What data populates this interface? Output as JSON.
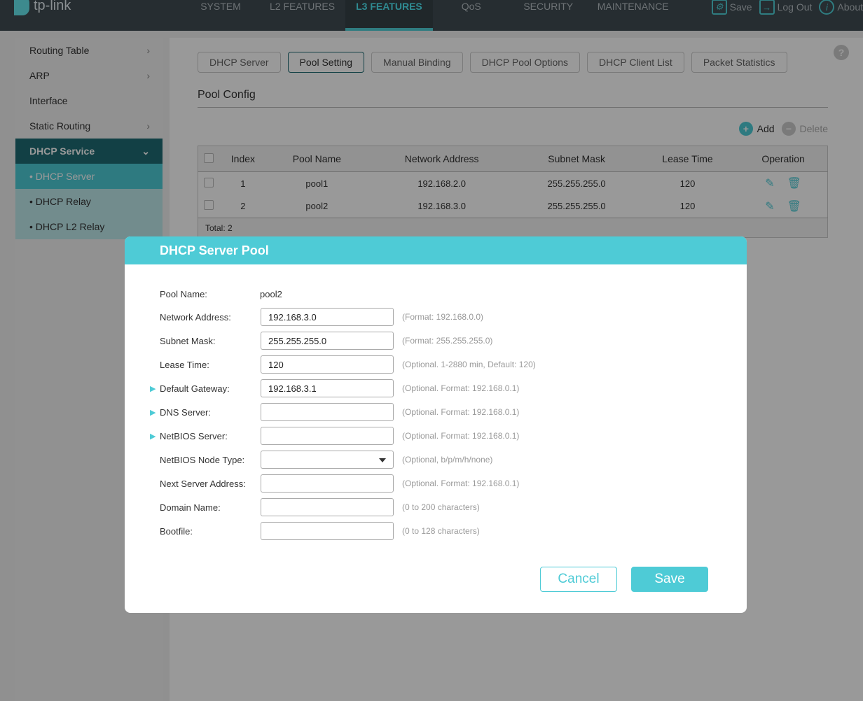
{
  "header": {
    "logo": "tp-link",
    "nav": [
      "SYSTEM",
      "L2 FEATURES",
      "L3 FEATURES",
      "QoS",
      "SECURITY",
      "MAINTENANCE"
    ],
    "active_nav": "L3 FEATURES",
    "save": "Save",
    "logout": "Log Out",
    "about": "About"
  },
  "sidebar": {
    "items": [
      "Routing Table",
      "ARP",
      "Interface",
      "Static Routing"
    ],
    "group": "DHCP Service",
    "sub": [
      "DHCP Server",
      "DHCP Relay",
      "DHCP L2 Relay"
    ]
  },
  "tabs": [
    "DHCP Server",
    "Pool Setting",
    "Manual Binding",
    "DHCP Pool Options",
    "DHCP Client List",
    "Packet Statistics"
  ],
  "section": "Pool Config",
  "toolbar": {
    "add": "Add",
    "delete": "Delete"
  },
  "table": {
    "headers": [
      "Index",
      "Pool Name",
      "Network Address",
      "Subnet Mask",
      "Lease Time",
      "Operation"
    ],
    "rows": [
      [
        "1",
        "pool1",
        "192.168.2.0",
        "255.255.255.0",
        "120"
      ],
      [
        "2",
        "pool2",
        "192.168.3.0",
        "255.255.255.0",
        "120"
      ]
    ],
    "total": "Total: 2"
  },
  "modal": {
    "title": "DHCP Server Pool",
    "pool_name_label": "Pool Name:",
    "pool_name": "pool2",
    "fields": [
      {
        "label": "Network Address:",
        "value": "192.168.3.0",
        "hint": "(Format: 192.168.0.0)"
      },
      {
        "label": "Subnet Mask:",
        "value": "255.255.255.0",
        "hint": "(Format: 255.255.255.0)"
      },
      {
        "label": "Lease Time:",
        "value": "120",
        "hint": "(Optional. 1-2880 min, Default: 120)"
      },
      {
        "label": "Default Gateway:",
        "value": "192.168.3.1",
        "hint": "(Optional. Format: 192.168.0.1)"
      },
      {
        "label": "DNS Server:",
        "value": "",
        "hint": "(Optional. Format: 192.168.0.1)"
      },
      {
        "label": "NetBIOS Server:",
        "value": "",
        "hint": "(Optional. Format: 192.168.0.1)"
      },
      {
        "label": "NetBIOS Node Type:",
        "value": "",
        "hint": "(Optional, b/p/m/h/none)"
      },
      {
        "label": "Next Server Address:",
        "value": "",
        "hint": "(Optional. Format: 192.168.0.1)"
      },
      {
        "label": "Domain Name:",
        "value": "",
        "hint": "(0 to 200 characters)"
      },
      {
        "label": "Bootfile:",
        "value": "",
        "hint": "(0 to 128 characters)"
      }
    ],
    "cancel": "Cancel",
    "save": "Save"
  },
  "colors": {
    "accent": "#4ecbd6",
    "header": "#262d31",
    "sidebar_active": "#1e6c73"
  }
}
